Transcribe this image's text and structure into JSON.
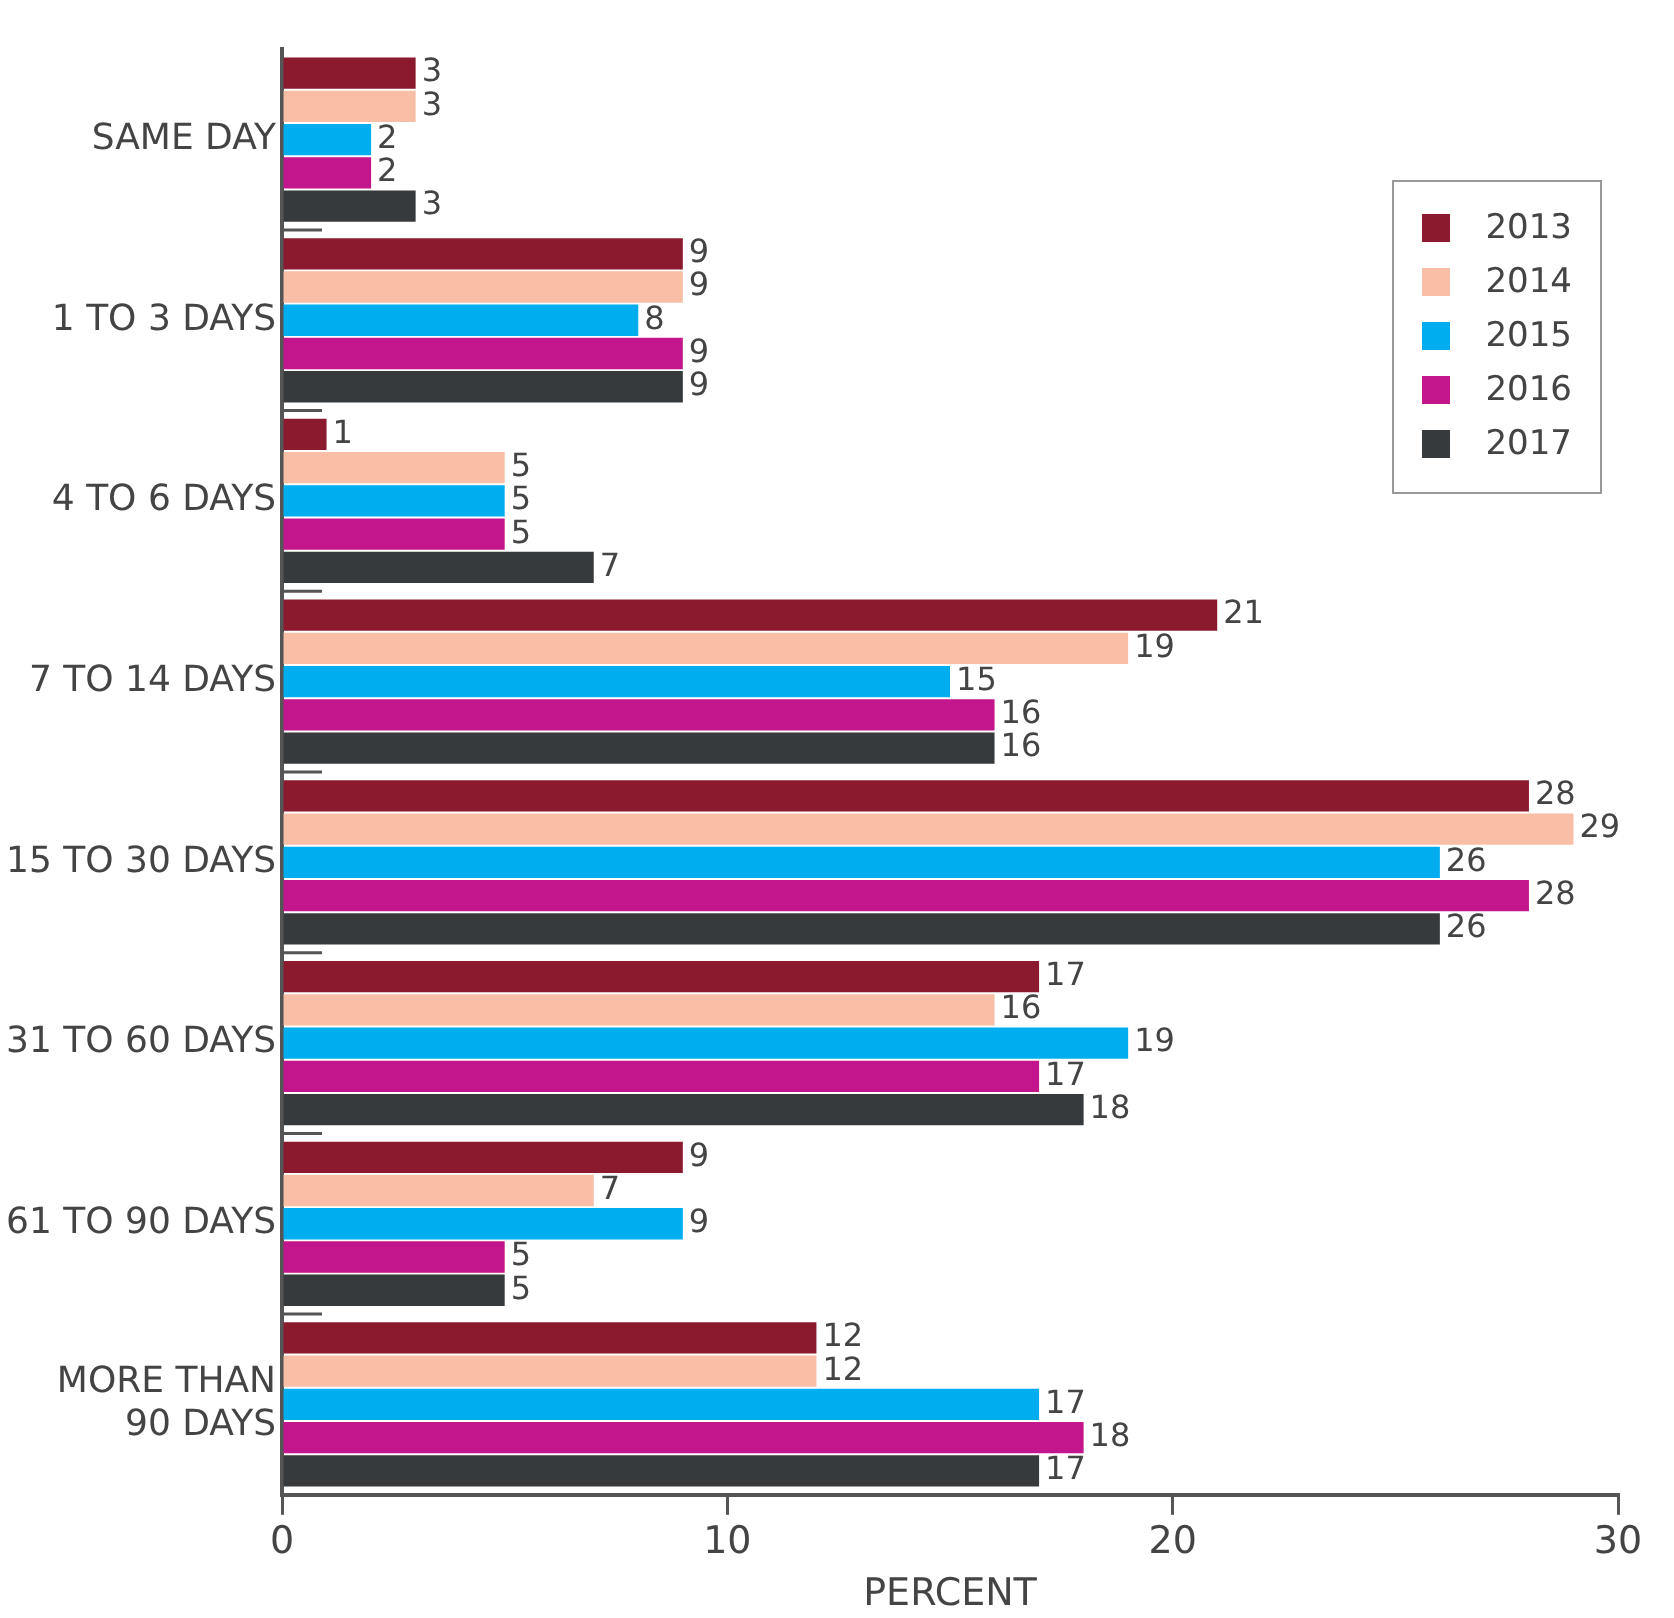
{
  "chart_data": {
    "type": "bar",
    "orientation": "horizontal",
    "xlabel": "PERCENT",
    "categories": [
      "SAME DAY",
      "1 TO 3 DAYS",
      "4 TO 6 DAYS",
      "7 TO 14 DAYS",
      "15 TO 30 DAYS",
      "31 TO 60 DAYS",
      "61 TO 90 DAYS",
      "MORE THAN 90 DAYS"
    ],
    "series": [
      {
        "name": "2013",
        "color": "#8b1a2e",
        "values": [
          3,
          9,
          1,
          21,
          28,
          17,
          9,
          12
        ]
      },
      {
        "name": "2014",
        "color": "#f9bea6",
        "values": [
          3,
          9,
          5,
          19,
          29,
          16,
          7,
          12
        ]
      },
      {
        "name": "2015",
        "color": "#00aeef",
        "values": [
          2,
          8,
          5,
          15,
          26,
          19,
          9,
          17
        ]
      },
      {
        "name": "2016",
        "color": "#c4168c",
        "values": [
          2,
          9,
          5,
          16,
          28,
          17,
          5,
          18
        ]
      },
      {
        "name": "2017",
        "color": "#373a3c",
        "values": [
          3,
          9,
          7,
          16,
          26,
          18,
          5,
          17
        ]
      }
    ],
    "xlim": [
      0,
      30
    ],
    "xticks": [
      0,
      10,
      20,
      30
    ],
    "grid": false,
    "legend": "top right",
    "data_labels": true
  }
}
